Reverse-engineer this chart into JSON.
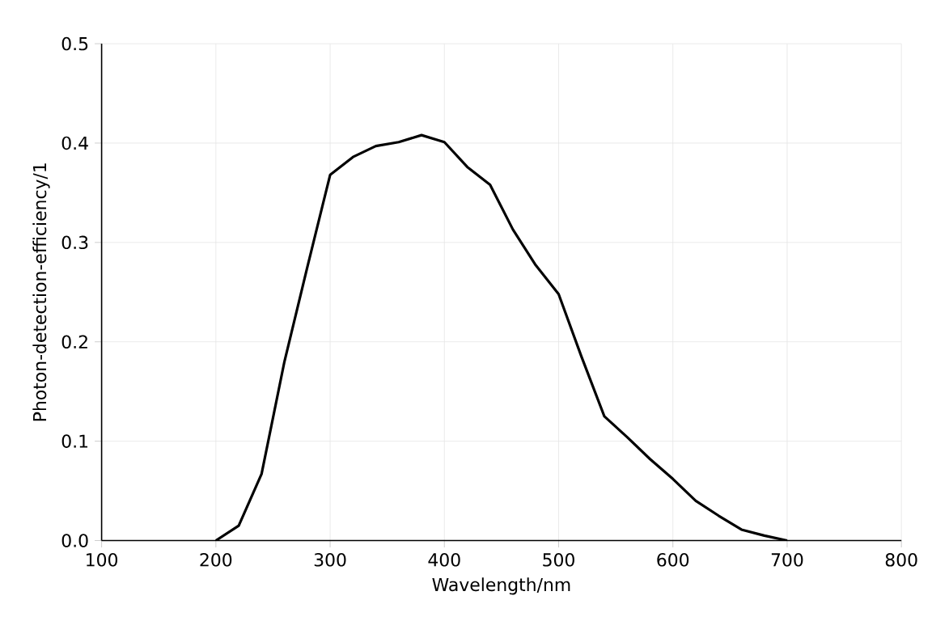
{
  "chart_data": {
    "type": "line",
    "xlabel": "Wavelength/nm",
    "ylabel": "Photon-detection-efficiency/1",
    "xlim": [
      100,
      800
    ],
    "xticks": [
      100,
      200,
      300,
      400,
      500,
      600,
      700,
      800
    ],
    "ylim": [
      0,
      0.5
    ],
    "yticks": [
      {
        "value": 0,
        "label": "0.0"
      },
      0.1,
      0.2,
      0.3,
      0.4,
      0.5
    ],
    "grid": true,
    "series": [
      {
        "color": "#000000",
        "line_style": "solid",
        "marker": "none",
        "x": [
          200,
          220,
          240,
          260,
          280,
          300,
          320,
          340,
          360,
          380,
          400,
          420,
          440,
          460,
          480,
          500,
          520,
          540,
          560,
          580,
          600,
          620,
          640,
          660,
          680,
          700
        ],
        "values": [
          0,
          0.015,
          0.067,
          0.18,
          0.275,
          0.368,
          0.386,
          0.397,
          0.401,
          0.408,
          0.401,
          0.376,
          0.358,
          0.313,
          0.277,
          0.248,
          0.185,
          0.125,
          0.104,
          0.082,
          0.062,
          0.04,
          0.025,
          0.011,
          0.005,
          0
        ]
      }
    ]
  }
}
